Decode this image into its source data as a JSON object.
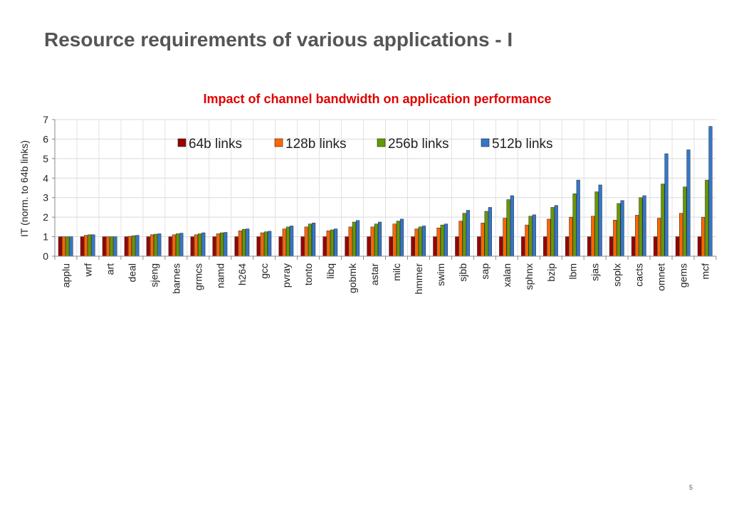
{
  "slide": {
    "title": "Resource requirements of various applications - I",
    "page_number": "5"
  },
  "chart_data": {
    "type": "bar",
    "title": "Impact of channel bandwidth on application performance",
    "title_color": "#e00000",
    "xlabel": "",
    "ylabel": "IT  (norm. to 64b links)",
    "ylim": [
      0,
      7
    ],
    "yticks": [
      0,
      1,
      2,
      3,
      4,
      5,
      6,
      7
    ],
    "grid": true,
    "legend_position": "top",
    "categories": [
      "applu",
      "wrf",
      "art",
      "deal",
      "sjeng",
      "barnes",
      "grmcs",
      "namd",
      "h264",
      "gcc",
      "pvray",
      "tonto",
      "libq",
      "gobmk",
      "astar",
      "milc",
      "hmmer",
      "swim",
      "sjbb",
      "sap",
      "xalan",
      "sphnx",
      "bzip",
      "lbm",
      "sjas",
      "soplx",
      "cacts",
      "omnet",
      "gems",
      "mcf"
    ],
    "series": [
      {
        "name": "64b links",
        "color": "#990000",
        "values": [
          1,
          1,
          1,
          1,
          1,
          1,
          1,
          1,
          1,
          1,
          1,
          1,
          1,
          1,
          1,
          1,
          1,
          1,
          1,
          1,
          1,
          1,
          1,
          1,
          1,
          1,
          1,
          1,
          1,
          1
        ]
      },
      {
        "name": "128b links",
        "color": "#ff6600",
        "values": [
          1,
          1.07,
          1,
          1.02,
          1.1,
          1.1,
          1.1,
          1.15,
          1.3,
          1.2,
          1.4,
          1.5,
          1.3,
          1.5,
          1.5,
          1.65,
          1.4,
          1.45,
          1.8,
          1.7,
          1.95,
          1.6,
          1.9,
          2.0,
          2.05,
          1.85,
          2.1,
          1.95,
          2.2,
          2.0
        ]
      },
      {
        "name": "256b links",
        "color": "#669900",
        "values": [
          1,
          1.1,
          1,
          1.05,
          1.13,
          1.15,
          1.15,
          1.2,
          1.38,
          1.25,
          1.5,
          1.65,
          1.35,
          1.75,
          1.65,
          1.8,
          1.5,
          1.6,
          2.2,
          2.3,
          2.9,
          2.05,
          2.5,
          3.2,
          3.3,
          2.7,
          3.0,
          3.7,
          3.55,
          3.9
        ]
      },
      {
        "name": "512b links",
        "color": "#3377cc",
        "values": [
          1,
          1.1,
          1,
          1.07,
          1.15,
          1.18,
          1.2,
          1.22,
          1.4,
          1.28,
          1.55,
          1.7,
          1.4,
          1.83,
          1.75,
          1.9,
          1.55,
          1.65,
          2.35,
          2.5,
          3.1,
          2.12,
          2.6,
          3.9,
          3.65,
          2.85,
          3.1,
          5.25,
          5.45,
          6.65
        ]
      }
    ]
  }
}
